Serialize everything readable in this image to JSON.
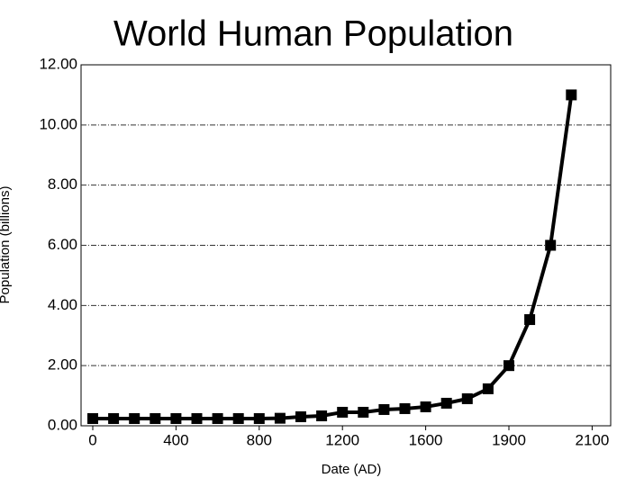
{
  "chart_data": {
    "type": "line",
    "title": "World Human Population",
    "x_label": "Date  (AD)",
    "y_label": "Population (billions)",
    "categories": [
      0,
      null,
      null,
      null,
      400,
      null,
      null,
      null,
      800,
      null,
      null,
      null,
      1200,
      null,
      null,
      null,
      1600,
      null,
      null,
      null,
      1900,
      null,
      null,
      null,
      2100
    ],
    "series": [
      {
        "name": "Population",
        "color": "#000000",
        "values": [
          0.24,
          0.24,
          0.24,
          0.24,
          0.24,
          0.24,
          0.24,
          0.24,
          0.24,
          0.25,
          0.3,
          0.33,
          0.45,
          0.45,
          0.54,
          0.57,
          0.63,
          0.75,
          0.9,
          1.23,
          2.0,
          3.53,
          6.0,
          11.0,
          null
        ]
      }
    ],
    "ylim": [
      0,
      12
    ],
    "yticks": [
      {
        "value": 0,
        "label": "0.00"
      },
      {
        "value": 2,
        "label": "2.00"
      },
      {
        "value": 4,
        "label": "4.00"
      },
      {
        "value": 6,
        "label": "6.00"
      },
      {
        "value": 8,
        "label": "8.00"
      },
      {
        "value": 10,
        "label": "10.00"
      },
      {
        "value": 12,
        "label": "12.00"
      }
    ],
    "grid": true
  }
}
